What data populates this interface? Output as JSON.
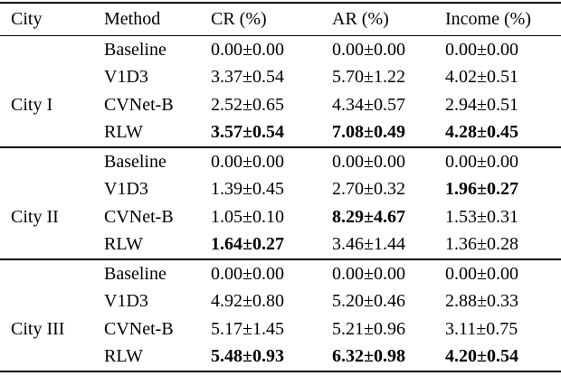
{
  "table": {
    "headers": [
      "City",
      "Method",
      "CR (%)",
      "AR (%)",
      "Income (%)"
    ],
    "groups": [
      {
        "city": "City I",
        "rows": [
          {
            "method": "Baseline",
            "cells": [
              {
                "text": "0.00±0.00",
                "bold": false
              },
              {
                "text": "0.00±0.00",
                "bold": false
              },
              {
                "text": "0.00±0.00",
                "bold": false
              }
            ]
          },
          {
            "method": "V1D3",
            "cells": [
              {
                "text": "3.37±0.54",
                "bold": false
              },
              {
                "text": "5.70±1.22",
                "bold": false
              },
              {
                "text": "4.02±0.51",
                "bold": false
              }
            ]
          },
          {
            "method": "CVNet-B",
            "cells": [
              {
                "text": "2.52±0.65",
                "bold": false
              },
              {
                "text": "4.34±0.57",
                "bold": false
              },
              {
                "text": "2.94±0.51",
                "bold": false
              }
            ]
          },
          {
            "method": "RLW",
            "cells": [
              {
                "text": "3.57±0.54",
                "bold": true
              },
              {
                "text": "7.08±0.49",
                "bold": true
              },
              {
                "text": "4.28±0.45",
                "bold": true
              }
            ]
          }
        ]
      },
      {
        "city": "City II",
        "rows": [
          {
            "method": "Baseline",
            "cells": [
              {
                "text": "0.00±0.00",
                "bold": false
              },
              {
                "text": "0.00±0.00",
                "bold": false
              },
              {
                "text": "0.00±0.00",
                "bold": false
              }
            ]
          },
          {
            "method": "V1D3",
            "cells": [
              {
                "text": "1.39±0.45",
                "bold": false
              },
              {
                "text": "2.70±0.32",
                "bold": false
              },
              {
                "text": "1.96±0.27",
                "bold": true
              }
            ]
          },
          {
            "method": "CVNet-B",
            "cells": [
              {
                "text": "1.05±0.10",
                "bold": false
              },
              {
                "text": "8.29±4.67",
                "bold": true
              },
              {
                "text": "1.53±0.31",
                "bold": false
              }
            ]
          },
          {
            "method": "RLW",
            "cells": [
              {
                "text": "1.64±0.27",
                "bold": true
              },
              {
                "text": "3.46±1.44",
                "bold": false
              },
              {
                "text": "1.36±0.28",
                "bold": false
              }
            ]
          }
        ]
      },
      {
        "city": "City III",
        "rows": [
          {
            "method": "Baseline",
            "cells": [
              {
                "text": "0.00±0.00",
                "bold": false
              },
              {
                "text": "0.00±0.00",
                "bold": false
              },
              {
                "text": "0.00±0.00",
                "bold": false
              }
            ]
          },
          {
            "method": "V1D3",
            "cells": [
              {
                "text": "4.92±0.80",
                "bold": false
              },
              {
                "text": "5.20±0.46",
                "bold": false
              },
              {
                "text": "2.88±0.33",
                "bold": false
              }
            ]
          },
          {
            "method": "CVNet-B",
            "cells": [
              {
                "text": "5.17±1.45",
                "bold": false
              },
              {
                "text": "5.21±0.96",
                "bold": false
              },
              {
                "text": "3.11±0.75",
                "bold": false
              }
            ]
          },
          {
            "method": "RLW",
            "cells": [
              {
                "text": "5.48±0.93",
                "bold": true
              },
              {
                "text": "6.32±0.98",
                "bold": true
              },
              {
                "text": "4.20±0.54",
                "bold": true
              }
            ]
          }
        ]
      }
    ]
  }
}
